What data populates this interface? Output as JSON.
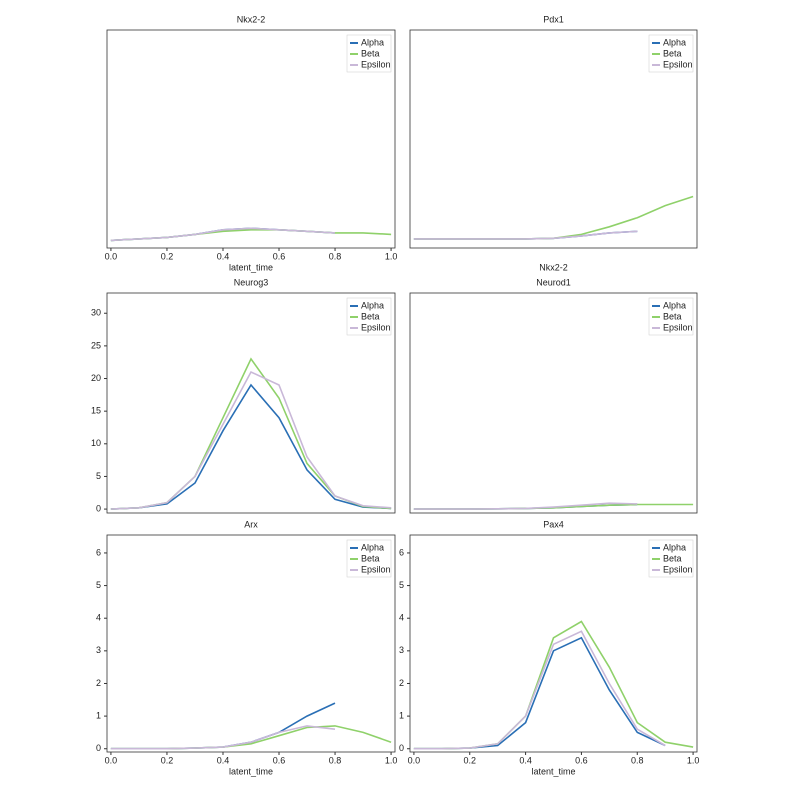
{
  "chart_data": [
    {
      "type": "line",
      "title": "Nkx2-2",
      "xlabel": "latent_time",
      "legend": "upper right",
      "x": [
        0,
        0.1,
        0.2,
        0.3,
        0.4,
        0.5,
        0.6,
        0.7,
        0.8,
        0.9,
        1.0
      ],
      "xlim": [
        -0.014,
        1.014
      ],
      "ylim": [
        -0.2,
        7
      ],
      "xticks": [
        {
          "value": 0,
          "label": "0.0"
        },
        {
          "value": 0.2,
          "label": "0.2"
        },
        {
          "value": 0.4,
          "label": "0.4"
        },
        {
          "value": 0.6,
          "label": "0.6"
        },
        {
          "value": 0.8,
          "label": "0.8"
        },
        {
          "value": 1,
          "label": "1.0"
        }
      ],
      "series": [
        {
          "name": "Alpha",
          "color": "#2a6fb5",
          "values": [
            0.05,
            0.1,
            0.15,
            0.25,
            0.4,
            0.45,
            0.4,
            0.35,
            0.3,
            null,
            null
          ]
        },
        {
          "name": "Beta",
          "color": "#8fd16a",
          "values": [
            0.05,
            0.1,
            0.15,
            0.25,
            0.35,
            0.4,
            0.4,
            0.35,
            0.3,
            0.3,
            0.25
          ]
        },
        {
          "name": "Epsilon",
          "color": "#c9b8d8",
          "values": [
            0.05,
            0.1,
            0.15,
            0.25,
            0.4,
            0.45,
            0.4,
            0.35,
            0.3,
            null,
            null
          ]
        }
      ]
    },
    {
      "type": "line",
      "title": "Pdx1",
      "xlabel": "Nkx2-2",
      "legend": "upper right",
      "x": [
        0,
        0.1,
        0.2,
        0.3,
        0.4,
        0.5,
        0.6,
        0.7,
        0.8,
        0.9,
        1.0
      ],
      "xlim": [
        -0.014,
        1.014
      ],
      "ylim": [
        -0.2,
        7
      ],
      "series": [
        {
          "name": "Alpha",
          "color": "#2a6fb5",
          "values": [
            0.1,
            0.1,
            0.1,
            0.1,
            0.1,
            0.12,
            0.2,
            0.3,
            0.35,
            null,
            null
          ]
        },
        {
          "name": "Beta",
          "color": "#8fd16a",
          "values": [
            0.1,
            0.1,
            0.1,
            0.1,
            0.1,
            0.12,
            0.25,
            0.5,
            0.8,
            1.2,
            1.5
          ]
        },
        {
          "name": "Epsilon",
          "color": "#c9b8d8",
          "values": [
            0.1,
            0.1,
            0.1,
            0.1,
            0.1,
            0.12,
            0.2,
            0.3,
            0.35,
            null,
            null
          ]
        }
      ]
    },
    {
      "type": "line",
      "title": "Neurog3",
      "legend": "upper right",
      "x": [
        0,
        0.1,
        0.2,
        0.3,
        0.4,
        0.5,
        0.6,
        0.7,
        0.8,
        0.9,
        1.0
      ],
      "xlim": [
        -0.014,
        1.014
      ],
      "ylim": [
        -0.6,
        33.1
      ],
      "yticks": [
        0,
        5,
        10,
        15,
        20,
        25,
        30
      ],
      "series": [
        {
          "name": "Alpha",
          "color": "#2a6fb5",
          "values": [
            0,
            0.2,
            0.8,
            4,
            12,
            19,
            14,
            6,
            1.5,
            0.3,
            0.1
          ]
        },
        {
          "name": "Beta",
          "color": "#8fd16a",
          "values": [
            0,
            0.2,
            1,
            5,
            14,
            23,
            17,
            7,
            2,
            0.4,
            0.1
          ]
        },
        {
          "name": "Epsilon",
          "color": "#c9b8d8",
          "values": [
            0,
            0.2,
            1,
            5,
            13,
            21,
            19,
            8,
            2,
            0.5,
            0.2
          ]
        }
      ]
    },
    {
      "type": "line",
      "title": "Neurod1",
      "legend": "upper right",
      "x": [
        0,
        0.1,
        0.2,
        0.3,
        0.4,
        0.5,
        0.6,
        0.7,
        0.8,
        0.9,
        1.0
      ],
      "xlim": [
        -0.014,
        1.014
      ],
      "ylim": [
        -0.6,
        33.1
      ],
      "series": [
        {
          "name": "Alpha",
          "color": "#2a6fb5",
          "values": [
            0,
            0,
            0,
            0.05,
            0.1,
            0.2,
            0.4,
            0.6,
            0.7,
            null,
            null
          ]
        },
        {
          "name": "Beta",
          "color": "#8fd16a",
          "values": [
            0,
            0,
            0,
            0.05,
            0.1,
            0.2,
            0.4,
            0.6,
            0.7,
            0.7,
            0.7
          ]
        },
        {
          "name": "Epsilon",
          "color": "#c9b8d8",
          "values": [
            0,
            0,
            0,
            0.05,
            0.1,
            0.3,
            0.6,
            0.9,
            0.8,
            null,
            null
          ]
        }
      ]
    },
    {
      "type": "line",
      "title": "Arx",
      "xlabel": "latent_time",
      "legend": "upper right",
      "x": [
        0,
        0.1,
        0.2,
        0.3,
        0.4,
        0.5,
        0.6,
        0.7,
        0.8,
        0.9,
        1.0
      ],
      "xlim": [
        -0.014,
        1.014
      ],
      "ylim": [
        -0.1,
        6.55
      ],
      "xticks": [
        {
          "value": 0,
          "label": "0.0"
        },
        {
          "value": 0.2,
          "label": "0.2"
        },
        {
          "value": 0.4,
          "label": "0.4"
        },
        {
          "value": 0.6,
          "label": "0.6"
        },
        {
          "value": 0.8,
          "label": "0.8"
        },
        {
          "value": 1,
          "label": "1.0"
        }
      ],
      "yticks": [
        0,
        1,
        2,
        3,
        4,
        5,
        6
      ],
      "series": [
        {
          "name": "Alpha",
          "color": "#2a6fb5",
          "values": [
            0,
            0,
            0,
            0.02,
            0.05,
            0.2,
            0.5,
            1.0,
            1.4,
            null,
            null
          ]
        },
        {
          "name": "Beta",
          "color": "#8fd16a",
          "values": [
            0,
            0,
            0,
            0.02,
            0.05,
            0.15,
            0.4,
            0.65,
            0.7,
            0.5,
            0.2
          ]
        },
        {
          "name": "Epsilon",
          "color": "#c9b8d8",
          "values": [
            0,
            0,
            0,
            0.02,
            0.05,
            0.2,
            0.5,
            0.7,
            0.6,
            null,
            null
          ]
        }
      ]
    },
    {
      "type": "line",
      "title": "Pax4",
      "xlabel": "latent_time",
      "legend": "upper right",
      "x": [
        0,
        0.1,
        0.2,
        0.3,
        0.4,
        0.5,
        0.6,
        0.7,
        0.8,
        0.9,
        1.0
      ],
      "xlim": [
        -0.014,
        1.014
      ],
      "ylim": [
        -0.1,
        6.55
      ],
      "xticks": [
        {
          "value": 0,
          "label": "0.0"
        },
        {
          "value": 0.2,
          "label": "0.2"
        },
        {
          "value": 0.4,
          "label": "0.4"
        },
        {
          "value": 0.6,
          "label": "0.6"
        },
        {
          "value": 0.8,
          "label": "0.8"
        },
        {
          "value": 1,
          "label": "1.0"
        }
      ],
      "yticks": [
        0,
        1,
        2,
        3,
        4,
        5,
        6
      ],
      "series": [
        {
          "name": "Alpha",
          "color": "#2a6fb5",
          "values": [
            0,
            0,
            0.02,
            0.1,
            0.8,
            3.0,
            3.4,
            1.8,
            0.5,
            0.1,
            null
          ]
        },
        {
          "name": "Beta",
          "color": "#8fd16a",
          "values": [
            0,
            0,
            0.02,
            0.15,
            1,
            3.4,
            3.9,
            2.5,
            0.8,
            0.2,
            0.05
          ]
        },
        {
          "name": "Epsilon",
          "color": "#c9b8d8",
          "values": [
            0,
            0,
            0.02,
            0.15,
            1,
            3.2,
            3.6,
            2.0,
            0.6,
            0.1,
            null
          ]
        }
      ]
    }
  ]
}
